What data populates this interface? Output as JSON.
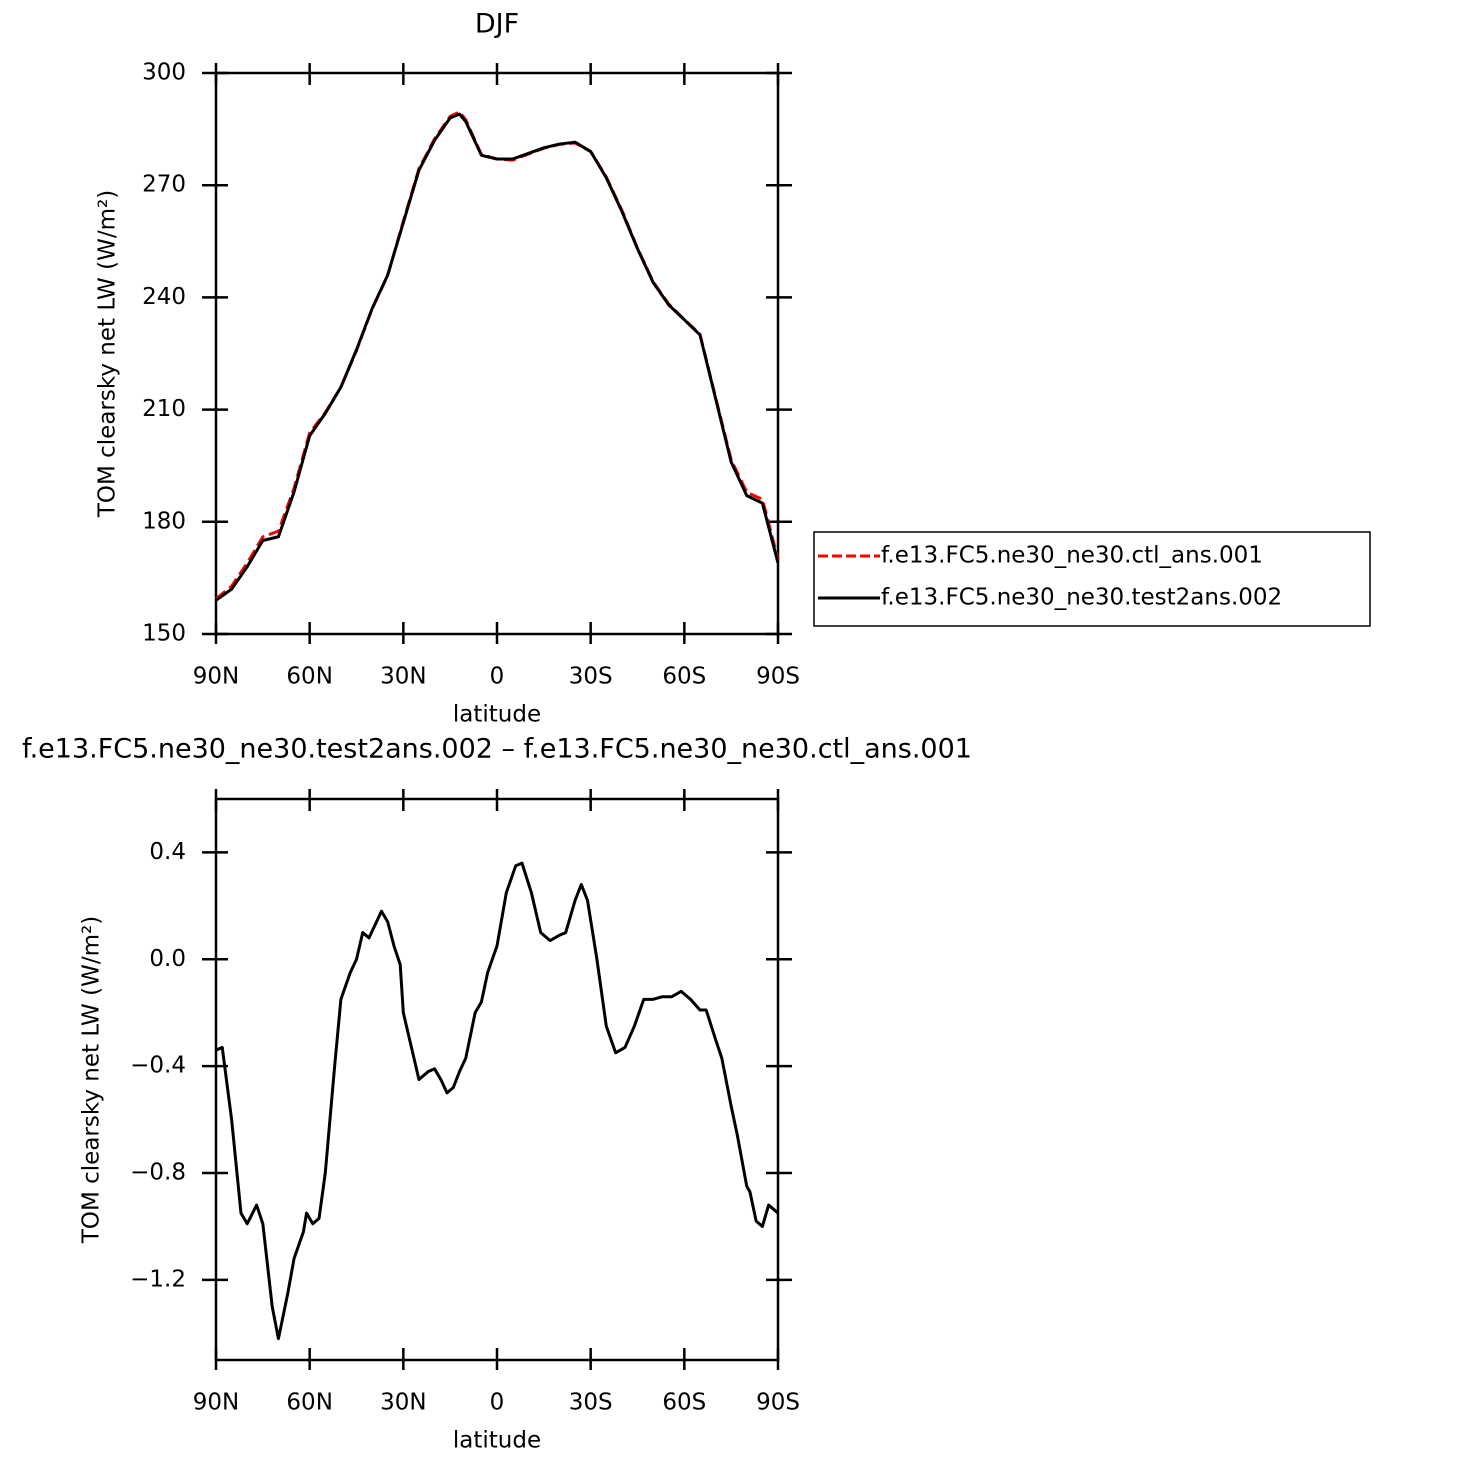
{
  "chart_data": [
    {
      "type": "line",
      "title": "DJF",
      "x_label": "latitude",
      "y_label": "TOM clearsky net LW (W/m²)",
      "x": [
        90,
        85,
        80,
        75,
        70,
        65,
        60,
        55,
        50,
        45,
        40,
        35,
        30,
        25,
        20,
        15,
        12,
        10,
        5,
        0,
        -5,
        -10,
        -15,
        -20,
        -25,
        -30,
        -35,
        -40,
        -45,
        -50,
        -55,
        -60,
        -65,
        -70,
        -75,
        -80,
        -85,
        -90
      ],
      "series": [
        {
          "name": "f.e13.FC5.ne30_ne30.ctl_ans.001",
          "color": "#ff0000",
          "linestyle": "dashed",
          "values": [
            159.4,
            162.8,
            169,
            176,
            177.5,
            189,
            203.8,
            209.2,
            216,
            225.8,
            236.9,
            245.9,
            260.4,
            274.4,
            282.4,
            288.4,
            289.6,
            287.5,
            278.2,
            277,
            276.7,
            278.3,
            279.9,
            280.9,
            281.3,
            279,
            272.2,
            263.3,
            253.2,
            244.2,
            238.2,
            234.1,
            230.2,
            213.3,
            196.6,
            187.9,
            186,
            170
          ]
        },
        {
          "name": "f.e13.FC5.ne30_ne30.test2ans.002",
          "color": "#000000",
          "linestyle": "solid",
          "values": [
            159,
            162,
            168,
            175,
            176,
            188,
            203,
            209,
            216,
            226,
            237,
            246,
            260,
            274,
            282,
            288,
            289,
            287,
            278,
            277,
            277,
            278.5,
            280,
            281,
            281.5,
            279,
            272,
            263,
            253,
            244,
            238,
            234,
            230,
            213,
            196,
            187,
            185,
            169
          ]
        }
      ],
      "xlim": [
        90,
        -90
      ],
      "xticks": [
        {
          "value": 90,
          "label": "90N"
        },
        {
          "value": 60,
          "label": "60N"
        },
        {
          "value": 30,
          "label": "30N"
        },
        0,
        {
          "value": -30,
          "label": "30S"
        },
        {
          "value": -60,
          "label": "60S"
        },
        {
          "value": -90,
          "label": "90S"
        }
      ],
      "ylim": [
        150,
        300
      ],
      "yticks": [
        150,
        180,
        210,
        240,
        270,
        300
      ],
      "legend": "right",
      "grid": false
    },
    {
      "type": "line",
      "title": "f.e13.FC5.ne30_ne30.test2ans.002 – f.e13.FC5.ne30_ne30.ctl_ans.001",
      "x_label": "latitude",
      "y_label": "TOM clearsky net LW (W/m²)",
      "x": [
        90,
        88,
        85,
        82,
        80,
        77,
        75,
        72,
        70,
        67,
        65,
        62,
        61,
        59,
        57,
        55,
        52,
        50,
        47,
        45,
        43,
        41,
        39,
        37,
        35,
        33,
        31,
        30,
        27,
        25,
        22,
        20,
        18,
        16,
        14,
        12,
        10,
        7,
        5,
        3,
        0,
        -3,
        -6,
        -8,
        -11,
        -14,
        -17,
        -20,
        -22,
        -25,
        -27,
        -29,
        -32,
        -35,
        -38,
        -41,
        -44,
        -47,
        -50,
        -53,
        -56,
        -59,
        -62,
        -65,
        -67,
        -70,
        -72,
        -75,
        -77,
        -80,
        -81,
        -83,
        -85,
        -87,
        -90
      ],
      "values": [
        -0.34,
        -0.33,
        -0.6,
        -0.95,
        -0.99,
        -0.92,
        -0.99,
        -1.3,
        -1.42,
        -1.25,
        -1.12,
        -1.02,
        -0.95,
        -0.99,
        -0.97,
        -0.8,
        -0.4,
        -0.15,
        -0.05,
        0.0,
        0.1,
        0.08,
        0.13,
        0.18,
        0.14,
        0.05,
        -0.02,
        -0.2,
        -0.35,
        -0.45,
        -0.42,
        -0.41,
        -0.45,
        -0.5,
        -0.48,
        -0.42,
        -0.37,
        -0.2,
        -0.16,
        -0.05,
        0.05,
        0.25,
        0.35,
        0.36,
        0.25,
        0.1,
        0.07,
        0.09,
        0.1,
        0.22,
        0.28,
        0.22,
        0.0,
        -0.25,
        -0.35,
        -0.33,
        -0.25,
        -0.15,
        -0.15,
        -0.14,
        -0.14,
        -0.12,
        -0.15,
        -0.19,
        -0.19,
        -0.3,
        -0.37,
        -0.55,
        -0.66,
        -0.85,
        -0.87,
        -0.98,
        -1.0,
        -0.92,
        -0.95
      ],
      "color": "#000000",
      "xlim": [
        90,
        -90
      ],
      "xticks": [
        {
          "value": 90,
          "label": "90N"
        },
        {
          "value": 60,
          "label": "60N"
        },
        {
          "value": 30,
          "label": "30N"
        },
        0,
        {
          "value": -30,
          "label": "30S"
        },
        {
          "value": -60,
          "label": "60S"
        },
        {
          "value": -90,
          "label": "90S"
        }
      ],
      "ylim": [
        -1.5,
        0.6
      ],
      "yticks": [
        {
          "value": -1.2,
          "label": "−1.2"
        },
        {
          "value": -0.8,
          "label": "−0.8"
        },
        {
          "value": -0.4,
          "label": "−0.4"
        },
        {
          "value": 0,
          "label": "0.0"
        },
        0.4
      ],
      "grid": false
    }
  ]
}
